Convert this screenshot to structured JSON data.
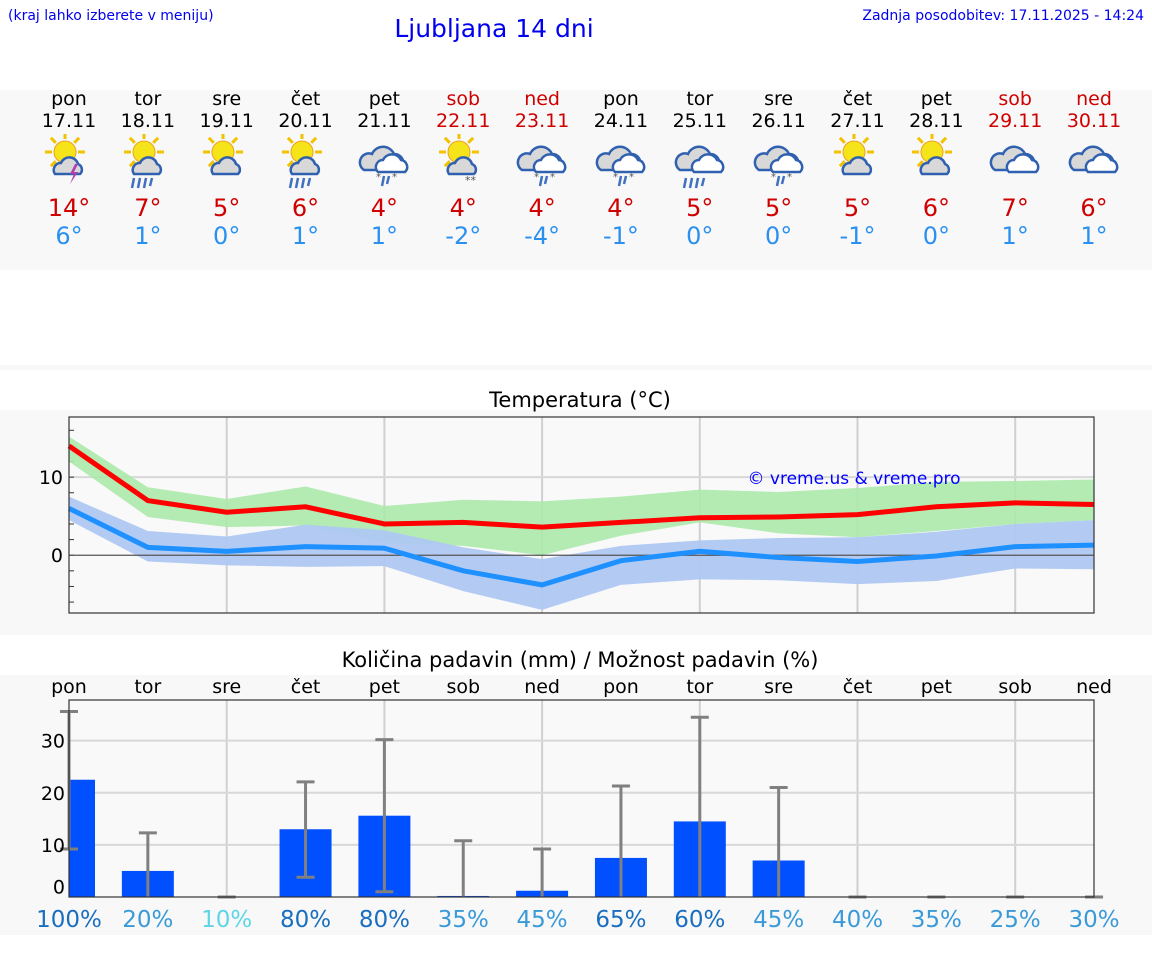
{
  "header": {
    "hint": "(kraj lahko izberete v meniju)",
    "title": "Ljubljana 14 dni",
    "updated": "Zadnja posodobitev: 17.11.2025 - 14:24"
  },
  "days": [
    {
      "name": "pon",
      "date": "17.11",
      "weekend": false,
      "icon": "sun-cloud-thunder",
      "max": "14°",
      "min": "6°"
    },
    {
      "name": "tor",
      "date": "18.11",
      "weekend": false,
      "icon": "sun-cloud-rain",
      "max": "7°",
      "min": "1°"
    },
    {
      "name": "sre",
      "date": "19.11",
      "weekend": false,
      "icon": "sun-cloud",
      "max": "5°",
      "min": "0°"
    },
    {
      "name": "čet",
      "date": "20.11",
      "weekend": false,
      "icon": "sun-cloud-rain",
      "max": "6°",
      "min": "1°"
    },
    {
      "name": "pet",
      "date": "21.11",
      "weekend": false,
      "icon": "cloud-sleet",
      "max": "4°",
      "min": "1°"
    },
    {
      "name": "sob",
      "date": "22.11",
      "weekend": true,
      "icon": "sun-cloud-snow",
      "max": "4°",
      "min": "-2°"
    },
    {
      "name": "ned",
      "date": "23.11",
      "weekend": true,
      "icon": "cloud-sleet",
      "max": "4°",
      "min": "-4°"
    },
    {
      "name": "pon",
      "date": "24.11",
      "weekend": false,
      "icon": "cloud-sleet",
      "max": "4°",
      "min": "-1°"
    },
    {
      "name": "tor",
      "date": "25.11",
      "weekend": false,
      "icon": "cloud-rain",
      "max": "5°",
      "min": "0°"
    },
    {
      "name": "sre",
      "date": "26.11",
      "weekend": false,
      "icon": "cloud-sleet",
      "max": "5°",
      "min": "0°"
    },
    {
      "name": "čet",
      "date": "27.11",
      "weekend": false,
      "icon": "sun-cloud",
      "max": "5°",
      "min": "-1°"
    },
    {
      "name": "pet",
      "date": "28.11",
      "weekend": false,
      "icon": "sun-cloud",
      "max": "6°",
      "min": "0°"
    },
    {
      "name": "sob",
      "date": "29.11",
      "weekend": true,
      "icon": "cloud",
      "max": "7°",
      "min": "1°"
    },
    {
      "name": "ned",
      "date": "30.11",
      "weekend": true,
      "icon": "cloud",
      "max": "6°",
      "min": "1°"
    }
  ],
  "colors": {
    "max": "#ff0000",
    "min": "#1e90ff",
    "max_band": "#abe9ab",
    "min_band": "#afc8f2",
    "bar": "#0050ff",
    "errbar": "#808080"
  },
  "chart_data": [
    {
      "type": "line",
      "title": "Temperatura (°C)",
      "ylim": [
        -7.4,
        17.7
      ],
      "yticks": [
        0,
        10
      ],
      "grid": true,
      "watermark": "© vreme.us & vreme.pro",
      "series": [
        {
          "values": [
            14,
            7,
            5.5,
            6.2,
            4,
            4.2,
            3.6,
            4.2,
            4.8,
            4.9,
            5.2,
            6.2,
            6.7,
            6.5
          ],
          "band_high": [
            15.2,
            8.7,
            7.2,
            8.8,
            6.3,
            7.1,
            6.9,
            7.5,
            8.4,
            8.1,
            8.6,
            9.4,
            9.5,
            9.7
          ],
          "band_low": [
            12,
            4.9,
            3.6,
            3.8,
            1.6,
            1.2,
            0,
            2.5,
            4.2,
            2.8,
            2.3,
            3.1,
            4,
            4.5
          ]
        },
        {
          "values": [
            6,
            1,
            0.5,
            1.1,
            0.9,
            -2,
            -3.8,
            -0.7,
            0.5,
            -0.3,
            -0.8,
            -0.1,
            1.1,
            1.3
          ],
          "band_high": [
            7.5,
            3.1,
            2.4,
            3.9,
            3.2,
            1,
            -0.5,
            1.2,
            1.9,
            2.2,
            2.3,
            3,
            4,
            4.5
          ],
          "band_low": [
            4.5,
            -0.8,
            -1.3,
            -1.5,
            -1.4,
            -4.6,
            -7,
            -3.8,
            -3.1,
            -3.2,
            -3.7,
            -3.3,
            -1.7,
            -1.8
          ]
        }
      ]
    },
    {
      "type": "bar",
      "title": "Količina padavin (mm) / Možnost padavin (%)",
      "ylim": [
        0,
        37.8
      ],
      "yticks": [
        0,
        10,
        20,
        30
      ],
      "grid": true,
      "categories": [
        "pon",
        "tor",
        "sre",
        "čet",
        "pet",
        "sob",
        "ned",
        "pon",
        "tor",
        "sre",
        "čet",
        "pet",
        "sob",
        "ned"
      ],
      "values": [
        22.5,
        5,
        0,
        13,
        15.6,
        0.2,
        1.2,
        7.5,
        14.5,
        7,
        0,
        0,
        0,
        0
      ],
      "err_low": [
        9.2,
        0,
        0,
        3.8,
        1,
        0,
        0,
        0,
        0,
        0,
        0,
        0,
        0,
        0
      ],
      "err_high": [
        35.6,
        12.3,
        0,
        22.1,
        30.2,
        10.8,
        9.2,
        21.3,
        34.5,
        21,
        0,
        0,
        0,
        0
      ],
      "probability": [
        {
          "label": "100%",
          "color": "#1a6ec0"
        },
        {
          "label": "20%",
          "color": "#3a9ad8"
        },
        {
          "label": "10%",
          "color": "#5cd6e6"
        },
        {
          "label": "80%",
          "color": "#1a6ec0"
        },
        {
          "label": "80%",
          "color": "#1a6ec0"
        },
        {
          "label": "35%",
          "color": "#3a9ad8"
        },
        {
          "label": "45%",
          "color": "#3a9ad8"
        },
        {
          "label": "65%",
          "color": "#1a6ec0"
        },
        {
          "label": "60%",
          "color": "#1a6ec0"
        },
        {
          "label": "45%",
          "color": "#3a9ad8"
        },
        {
          "label": "40%",
          "color": "#3a9ad8"
        },
        {
          "label": "35%",
          "color": "#3a9ad8"
        },
        {
          "label": "25%",
          "color": "#3a9ad8"
        },
        {
          "label": "30%",
          "color": "#3a9ad8"
        }
      ]
    }
  ]
}
